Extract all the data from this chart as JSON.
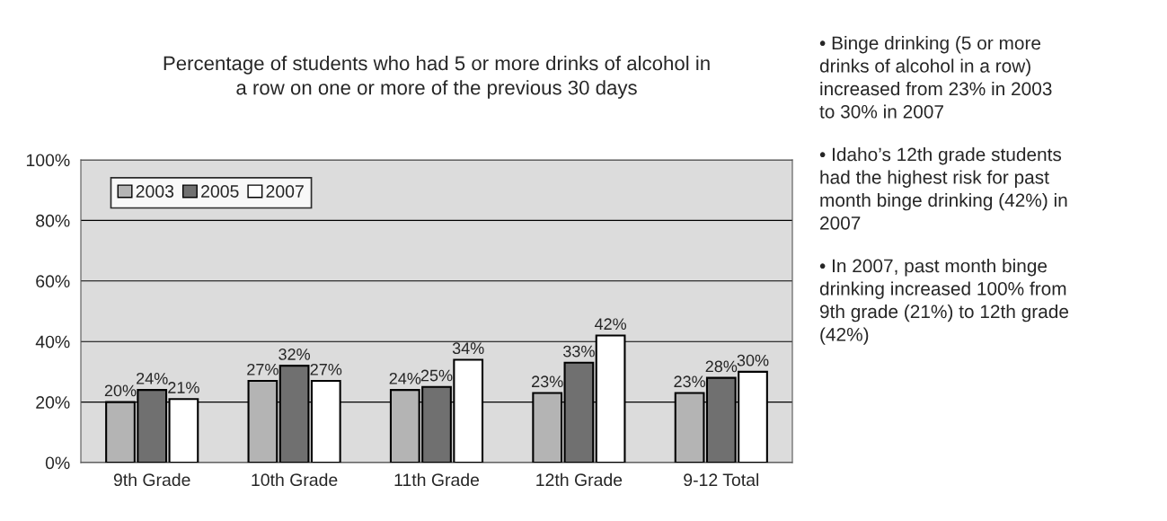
{
  "chart_data": {
    "type": "bar",
    "title": "Percentage of students who had 5 or more drinks of alcohol in a row on one or more of the previous 30 days",
    "categories": [
      "9th Grade",
      "10th Grade",
      "11th Grade",
      "12th Grade",
      "9-12 Total"
    ],
    "series": [
      {
        "name": "2003",
        "color": "#b4b4b4",
        "values": [
          20,
          27,
          24,
          23,
          23
        ],
        "value_labels": [
          "20%",
          "27%",
          "24%",
          "23%",
          "23%"
        ]
      },
      {
        "name": "2005",
        "color": "#707070",
        "values": [
          24,
          32,
          25,
          33,
          28
        ],
        "value_labels": [
          "24%",
          "32%",
          "25%",
          "33%",
          "28%"
        ]
      },
      {
        "name": "2007",
        "color": "#ffffff",
        "values": [
          21,
          27,
          34,
          42,
          30
        ],
        "value_labels": [
          "21%",
          "27%",
          "34%",
          "42%",
          "30%"
        ]
      }
    ],
    "ylim": [
      0,
      100
    ],
    "yticks": [
      {
        "value": 0,
        "label": "0%"
      },
      {
        "value": 20,
        "label": "20%"
      },
      {
        "value": 40,
        "label": "40%"
      },
      {
        "value": 60,
        "label": "60%"
      },
      {
        "value": 80,
        "label": "80%"
      },
      {
        "value": 100,
        "label": "100%"
      }
    ],
    "grid": "y",
    "legend": "top left",
    "annotations": [
      "• Binge drinking (5 or more drinks of alcohol in a row) increased from 23% in 2003 to 30% in 2007",
      "• Idaho’s 12th grade students had the highest risk for past month binge drinking (42%) in 2007",
      "• In 2007, past month binge drinking increased 100% from 9th grade (21%) to 12th grade (42%)"
    ]
  }
}
